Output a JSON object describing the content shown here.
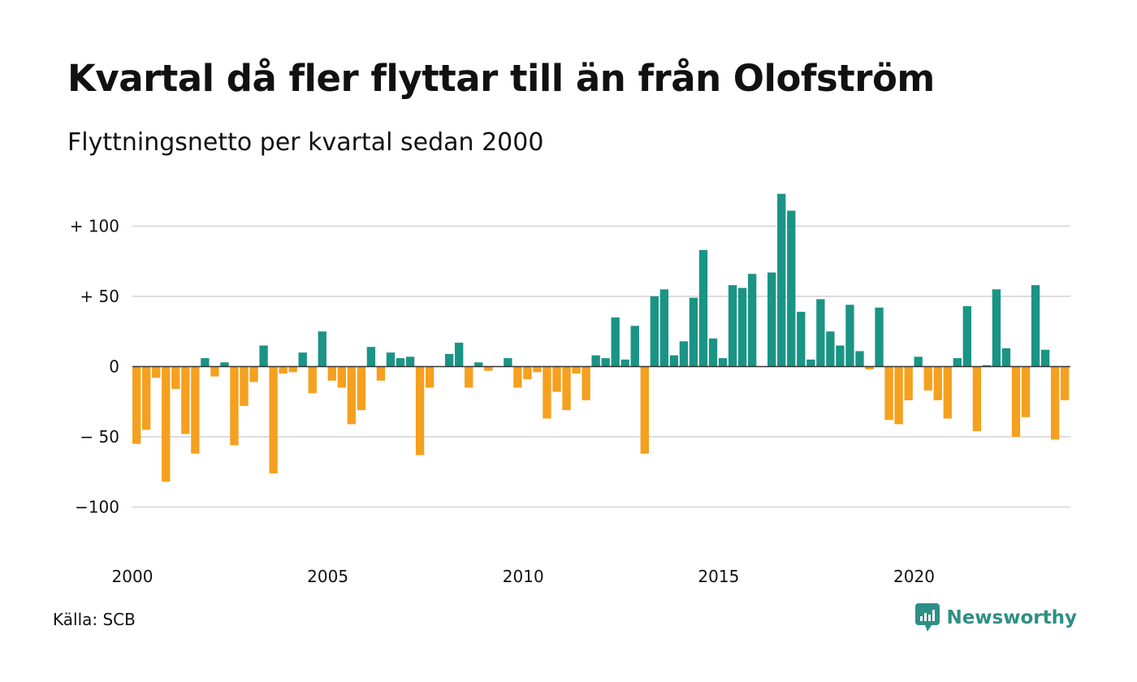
{
  "title": "Kvartal då fler flyttar till än från Olofström",
  "subtitle": "Flyttningsnetto per kvartal sedan 2000",
  "source": "Källa: SCB",
  "brand": "Newsworthy",
  "colors": {
    "positive": "#1a9485",
    "negative": "#f5a01e",
    "grid": "#dddddd",
    "zero": "#333333",
    "brand": "#2e8f86"
  },
  "chart_data": {
    "type": "bar",
    "x_ticks": [
      "2000",
      "2005",
      "2010",
      "2015",
      "2020"
    ],
    "y_ticks": [
      {
        "value": 100,
        "label": "+ 100"
      },
      {
        "value": 50,
        "label": "+  50"
      },
      {
        "value": 0,
        "label": "0"
      },
      {
        "value": -50,
        "label": "− 50"
      },
      {
        "value": -100,
        "label": "−100"
      }
    ],
    "ylim": [
      -125,
      125
    ],
    "start": "2000 Q1",
    "values": [
      -55,
      -45,
      -8,
      -82,
      -16,
      -48,
      -62,
      6,
      -7,
      3,
      -56,
      -28,
      -11,
      15,
      -76,
      -5,
      -4,
      10,
      -19,
      25,
      -10,
      -15,
      -41,
      -31,
      14,
      -10,
      10,
      6,
      7,
      -63,
      -15,
      0,
      9,
      17,
      -15,
      3,
      -3,
      0,
      6,
      -15,
      -9,
      -4,
      -37,
      -18,
      -31,
      -5,
      -24,
      8,
      6,
      35,
      5,
      29,
      -62,
      50,
      55,
      8,
      18,
      49,
      83,
      20,
      6,
      58,
      56,
      66,
      0,
      67,
      123,
      111,
      39,
      5,
      48,
      25,
      15,
      44,
      11,
      -2,
      42,
      -38,
      -41,
      -24,
      7,
      -17,
      -24,
      -37,
      6,
      43,
      -46,
      1,
      55,
      13,
      -50,
      -36,
      58,
      12,
      -52,
      -24
    ]
  }
}
